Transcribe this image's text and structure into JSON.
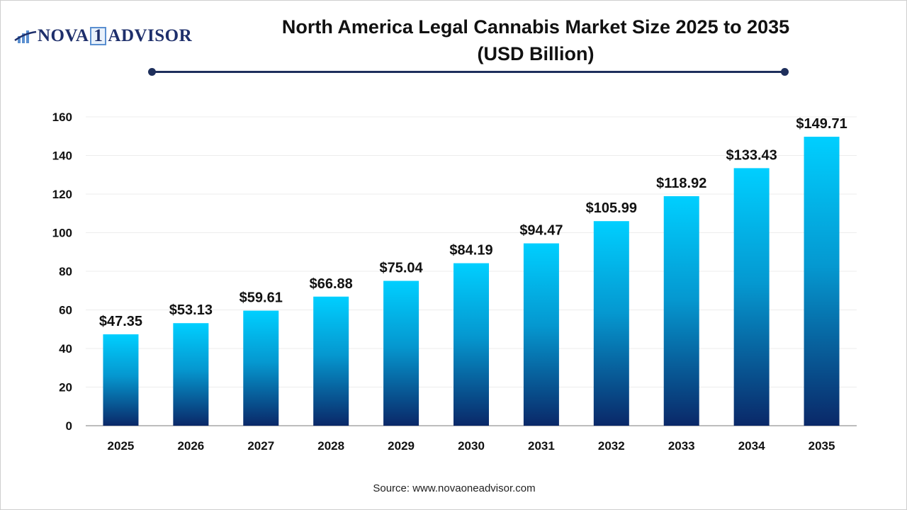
{
  "logo": {
    "text_left": "NOVA",
    "text_mid": "1",
    "text_right": "ADVISOR"
  },
  "chart_data": {
    "type": "bar",
    "title": "North America Legal Cannabis Market Size 2025 to 2035",
    "subtitle": "(USD Billion)",
    "categories": [
      "2025",
      "2026",
      "2027",
      "2028",
      "2029",
      "2030",
      "2031",
      "2032",
      "2033",
      "2034",
      "2035"
    ],
    "values": [
      47.35,
      53.13,
      59.61,
      66.88,
      75.04,
      84.19,
      94.47,
      105.99,
      118.92,
      133.43,
      149.71
    ],
    "data_labels": [
      "$47.35",
      "$53.13",
      "$59.61",
      "$66.88",
      "$75.04",
      "$84.19",
      "$94.47",
      "$105.99",
      "$118.92",
      "$133.43",
      "$149.71"
    ],
    "yticks": [
      0,
      20,
      40,
      60,
      80,
      100,
      120,
      140,
      160
    ],
    "ylim": [
      0,
      160
    ],
    "xlabel": "",
    "ylabel": "",
    "grid": true,
    "colors": {
      "bar_top": "#00CFFF",
      "bar_bottom": "#0A2868",
      "title_rule": "#1E2F5C"
    }
  },
  "source": "Source: www.novaoneadvisor.com"
}
